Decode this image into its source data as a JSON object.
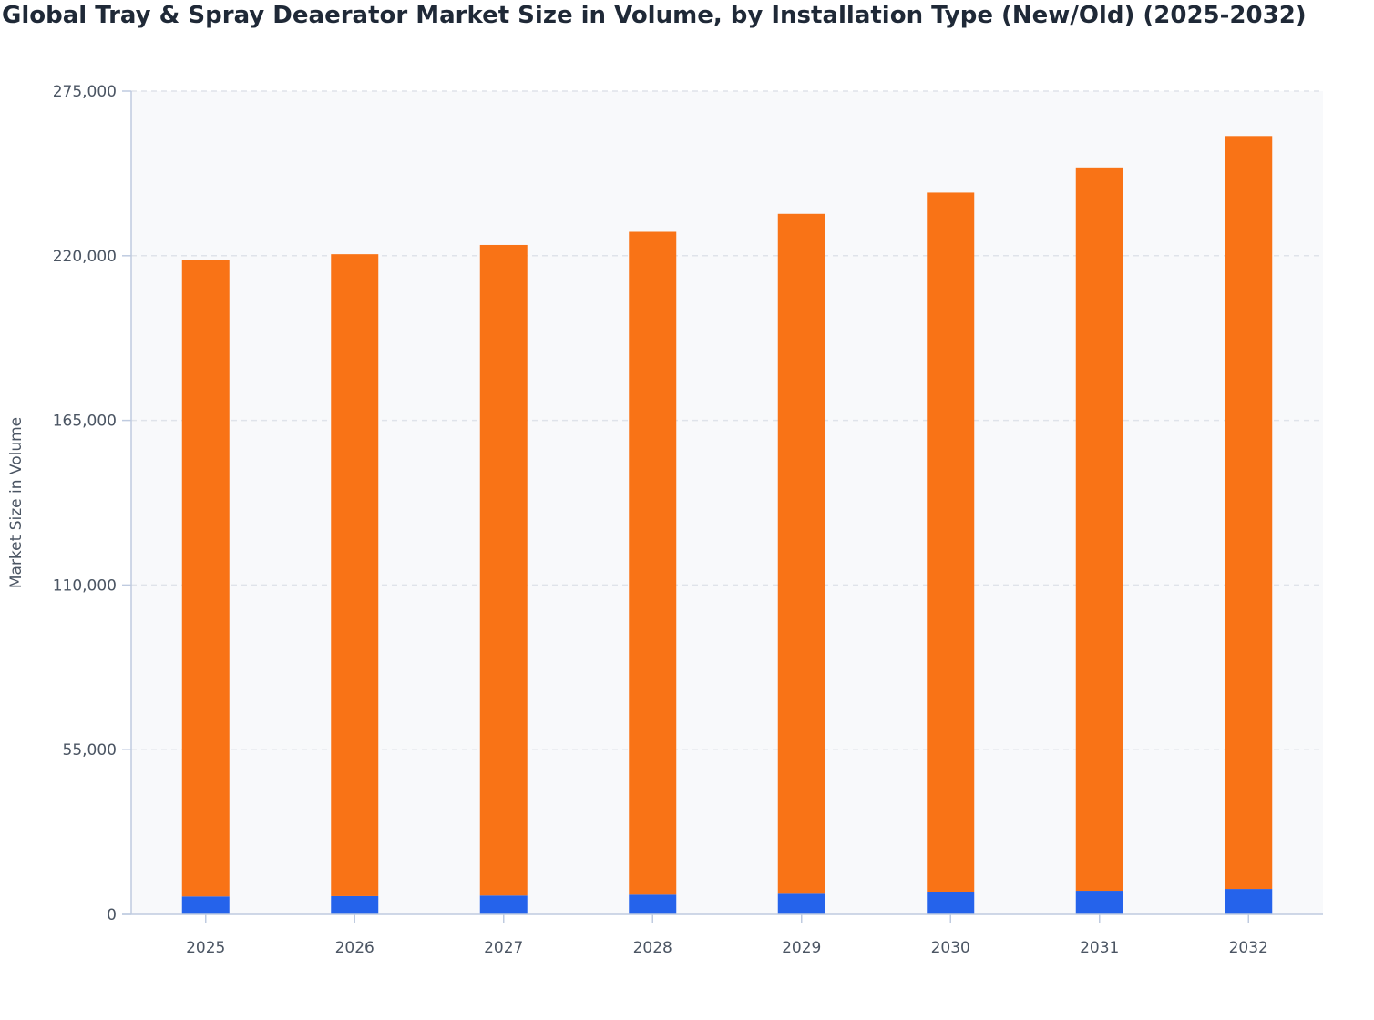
{
  "title": "Global Tray & Spray Deaerator Market Size in Volume, by Installation Type (New/Old) (2025-2032)",
  "colors": {
    "plot_background": "#f8f9fb",
    "grid": "#dfe3ea",
    "axis": "#bfcbe0",
    "series_bottom": "#2563eb",
    "series_top": "#f97316"
  },
  "chart_data": {
    "type": "bar",
    "stacked": true,
    "title": "Global Tray & Spray Deaerator Market Size in Volume, by Installation Type (New/Old) (2025-2032)",
    "xlabel": "",
    "ylabel": "Market Size in Volume",
    "categories": [
      "2025",
      "2026",
      "2027",
      "2028",
      "2029",
      "2030",
      "2031",
      "2032"
    ],
    "ylim": [
      0,
      275000
    ],
    "yticks": [
      0,
      55000,
      110000,
      165000,
      220000,
      275000
    ],
    "ytick_labels": [
      "0",
      "55,000",
      "110,000",
      "165,000",
      "220,000",
      "275,000"
    ],
    "grid": true,
    "legend": "none",
    "series": [
      {
        "color": "#2563eb",
        "values": [
          6000,
          6100,
          6300,
          6600,
          6900,
          7300,
          7900,
          8500
        ]
      },
      {
        "color": "#f97316",
        "values": [
          212500,
          214400,
          217300,
          221400,
          227100,
          233800,
          241600,
          251500
        ]
      }
    ]
  }
}
